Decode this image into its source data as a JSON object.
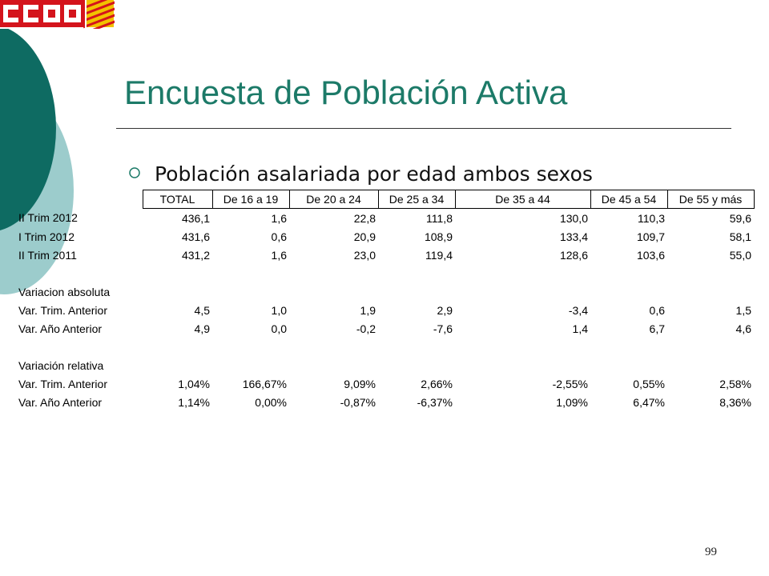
{
  "logo": {
    "text": "CCOO",
    "flag_colors": [
      "#f2c200",
      "#d4141c"
    ],
    "brand_color": "#d4141c"
  },
  "title": "Encuesta de Población Activa",
  "subtitle": "Población asalariada por edad ambos sexos",
  "bullet_icon": "circle-bullet",
  "page_number": "99",
  "colors": {
    "title": "#1c7a68",
    "dark_teal": "#0e6b62",
    "light_teal": "#9ccccc"
  },
  "table": {
    "headers": [
      "TOTAL",
      "De 16 a 19",
      "De 20 a 24",
      "De 25 a 34",
      "De 35 a 44",
      "De 45 a 54",
      "De 55 y más"
    ],
    "rows": [
      {
        "label": "II Trim 2012",
        "values": [
          "436,1",
          "1,6",
          "22,8",
          "111,8",
          "130,0",
          "110,3",
          "59,6"
        ]
      },
      {
        "label": "I Trim 2012",
        "values": [
          "431,6",
          "0,6",
          "20,9",
          "108,9",
          "133,4",
          "109,7",
          "58,1"
        ]
      },
      {
        "label": "II Trim 2011",
        "values": [
          "431,2",
          "1,6",
          "23,0",
          "119,4",
          "128,6",
          "103,6",
          "55,0"
        ]
      },
      {
        "label": "",
        "values": [
          "",
          "",
          "",
          "",
          "",
          "",
          ""
        ]
      },
      {
        "label": "Variacion absoluta",
        "values": [
          "",
          "",
          "",
          "",
          "",
          "",
          ""
        ]
      },
      {
        "label": "Var. Trim. Anterior",
        "values": [
          "4,5",
          "1,0",
          "1,9",
          "2,9",
          "-3,4",
          "0,6",
          "1,5"
        ]
      },
      {
        "label": "Var. Año Anterior",
        "values": [
          "4,9",
          "0,0",
          "-0,2",
          "-7,6",
          "1,4",
          "6,7",
          "4,6"
        ]
      },
      {
        "label": "",
        "values": [
          "",
          "",
          "",
          "",
          "",
          "",
          ""
        ]
      },
      {
        "label": "Variación relativa",
        "values": [
          "",
          "",
          "",
          "",
          "",
          "",
          ""
        ]
      },
      {
        "label": "Var. Trim. Anterior",
        "values": [
          "1,04%",
          "166,67%",
          "9,09%",
          "2,66%",
          "-2,55%",
          "0,55%",
          "2,58%"
        ]
      },
      {
        "label": "Var. Año Anterior",
        "values": [
          "1,14%",
          "0,00%",
          "-0,87%",
          "-6,37%",
          "1,09%",
          "6,47%",
          "8,36%"
        ]
      }
    ]
  }
}
